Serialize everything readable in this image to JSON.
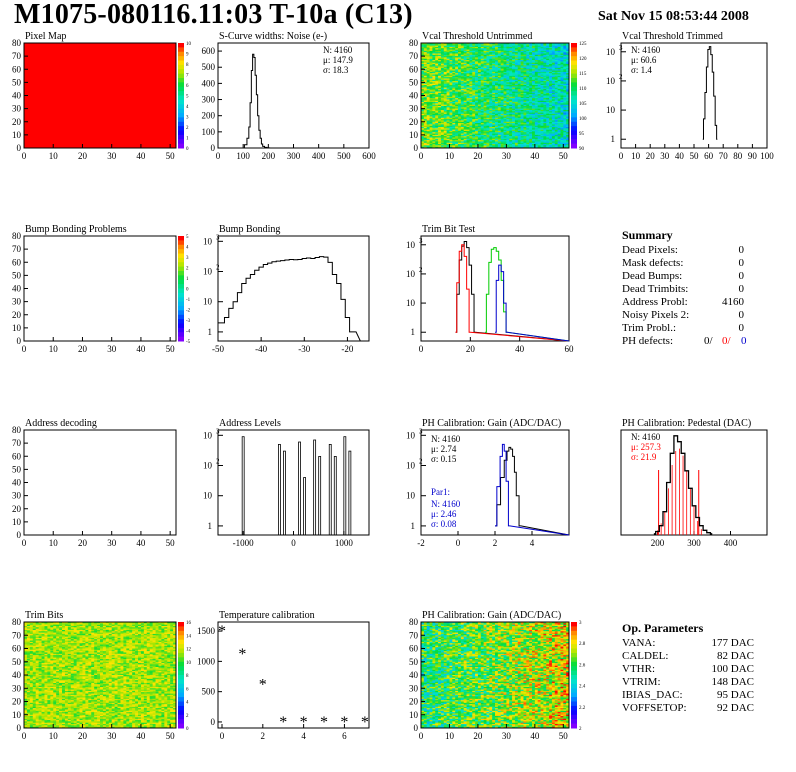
{
  "header": {
    "title": "M1075-080116.11:03 T-10a (C13)",
    "date": "Sat Nov 15 08:53:44 2008"
  },
  "colors": {
    "black_hist": "#000000",
    "red_hist": "#ff0000",
    "green_hist": "#00cc00",
    "blue_hist": "#0000cc",
    "pixel_map_fill": "#ff0000"
  },
  "palette_icon": "rainbow-color-scale",
  "panels": {
    "pixel_map": {
      "title": "Pixel Map",
      "zscale": [
        "10",
        "9",
        "8",
        "7",
        "6",
        "5",
        "4",
        "3",
        "2",
        "1",
        "0"
      ]
    },
    "scurve": {
      "title": "S-Curve widths: Noise (e",
      "title_sup": "-",
      "title_end": ")",
      "stats": [
        "N: 4160",
        "μ:  147.9",
        "σ:  18.3"
      ]
    },
    "vcal_untrimmed": {
      "title": "Vcal Threshold Untrimmed",
      "zscale": [
        "125",
        "120",
        "115",
        "110",
        "105",
        "100",
        "95",
        "90"
      ]
    },
    "vcal_trimmed": {
      "title": "Vcal Threshold Trimmed",
      "stats": [
        "N: 4160",
        "μ:  60.6",
        "σ:   1.4"
      ]
    },
    "bump_problems": {
      "title": "Bump Bonding Problems",
      "zscale": [
        "5",
        "4",
        "3",
        "2",
        "1",
        "0",
        "-1",
        "-2",
        "-3",
        "-4",
        "-5"
      ]
    },
    "bump_bonding": {
      "title": "Bump Bonding"
    },
    "trim_bit_test": {
      "title": "Trim Bit Test"
    },
    "address_decoding": {
      "title": "Address decoding"
    },
    "address_levels": {
      "title": "Address Levels"
    },
    "ph_gain": {
      "title": "PH Calibration: Gain (ADC/DAC)",
      "stats": [
        "N: 4160",
        "μ:  2.74",
        "σ:  0.15"
      ],
      "par1_title": "Par1:",
      "par1_stats": [
        "N: 4160",
        "μ:  2.46",
        "σ:  0.08"
      ]
    },
    "ph_pedestal": {
      "title": "PH Calibration: Pedestal (DAC)",
      "stats": [
        "N: 4160",
        "μ:  257.3",
        "σ:  21.9"
      ]
    },
    "trim_bits": {
      "title": "Trim Bits",
      "zscale": [
        "16",
        "14",
        "12",
        "10",
        "8",
        "6",
        "4",
        "2",
        "0"
      ]
    },
    "temp_cal": {
      "title": "Temperature calibration"
    },
    "ph_gain_map": {
      "title": "PH Calibration: Gain (ADC/DAC)",
      "zscale": [
        "3",
        "2.8",
        "2.6",
        "2.4",
        "2.2",
        "2"
      ]
    }
  },
  "summary": {
    "title": "Summary",
    "rows": [
      {
        "label": "Dead Pixels:",
        "value": "0"
      },
      {
        "label": "Mask defects:",
        "value": "0"
      },
      {
        "label": "Dead Bumps:",
        "value": "0"
      },
      {
        "label": "Dead Trimbits:",
        "value": "0"
      },
      {
        "label": "Address Probl:",
        "value": "4160"
      },
      {
        "label": "Noisy Pixels 2:",
        "value": "0"
      },
      {
        "label": "Trim Probl.:",
        "value": "0"
      }
    ],
    "ph_defects": {
      "label": "PH defects:",
      "v1": "0/",
      "v2": "0/",
      "v3": "0"
    }
  },
  "op_params": {
    "title": "Op. Parameters",
    "rows": [
      {
        "label": "VANA:",
        "value": "177 DAC"
      },
      {
        "label": "CALDEL:",
        "value": "82 DAC"
      },
      {
        "label": "VTHR:",
        "value": "100 DAC"
      },
      {
        "label": "VTRIM:",
        "value": "148 DAC"
      },
      {
        "label": "IBIAS_DAC:",
        "value": "95 DAC"
      },
      {
        "label": "VOFFSETOP:",
        "value": "92 DAC"
      }
    ]
  },
  "chart_data": [
    {
      "panel": "Pixel Map",
      "type": "heatmap",
      "x_range": [
        0,
        52
      ],
      "y_range": [
        0,
        80
      ],
      "xticks": [
        "0",
        "10",
        "20",
        "30",
        "40",
        "50"
      ],
      "yticks": [
        "0",
        "10",
        "20",
        "30",
        "40",
        "50",
        "60",
        "70",
        "80"
      ],
      "uniform_value": 10,
      "z_range": [
        0,
        10
      ]
    },
    {
      "panel": "S-Curve widths",
      "type": "line",
      "xlim": [
        0,
        600
      ],
      "ylim": [
        0,
        650
      ],
      "xticks": [
        "0",
        "100",
        "200",
        "300",
        "400",
        "500",
        "600"
      ],
      "yticks": [
        "0",
        "100",
        "200",
        "300",
        "400",
        "500",
        "600"
      ],
      "x": [
        100,
        110,
        120,
        125,
        130,
        135,
        140,
        145,
        150,
        155,
        160,
        165,
        170,
        175,
        180,
        190,
        200,
        210
      ],
      "values": [
        0,
        20,
        60,
        130,
        280,
        480,
        580,
        560,
        450,
        330,
        200,
        110,
        60,
        25,
        10,
        4,
        1,
        0
      ]
    },
    {
      "panel": "Vcal Threshold Untrimmed",
      "type": "heatmap",
      "x_range": [
        0,
        52
      ],
      "y_range": [
        0,
        80
      ],
      "xticks": [
        "0",
        "10",
        "20",
        "30",
        "40",
        "50"
      ],
      "yticks": [
        "0",
        "10",
        "20",
        "30",
        "40",
        "50",
        "60",
        "70",
        "80"
      ],
      "z_range": [
        90,
        127
      ]
    },
    {
      "panel": "Vcal Threshold Trimmed",
      "type": "line",
      "scale": "log",
      "xlim": [
        0,
        100
      ],
      "ylim": [
        0.5,
        2000
      ],
      "xticks": [
        "0",
        "10",
        "20",
        "30",
        "40",
        "50",
        "60",
        "70",
        "80",
        "90",
        "100"
      ],
      "x": [
        56,
        57,
        58,
        59,
        60,
        61,
        62,
        63,
        64,
        65,
        66
      ],
      "values": [
        1,
        5,
        40,
        300,
        1200,
        1500,
        800,
        200,
        30,
        3,
        1
      ]
    },
    {
      "panel": "Bump Bonding Problems",
      "type": "heatmap",
      "x_range": [
        0,
        52
      ],
      "y_range": [
        0,
        80
      ],
      "xticks": [
        "0",
        "10",
        "20",
        "30",
        "40",
        "50"
      ],
      "yticks": [
        "0",
        "10",
        "20",
        "30",
        "40",
        "50",
        "60",
        "70",
        "80"
      ],
      "z_range": [
        -5,
        5
      ],
      "empty": true
    },
    {
      "panel": "Bump Bonding",
      "type": "line",
      "scale": "log",
      "xlim": [
        -50,
        -15
      ],
      "ylim": [
        0.5,
        1500
      ],
      "xticks": [
        "-50",
        "-40",
        "-30",
        "-20"
      ],
      "x": [
        -50,
        -49,
        -48,
        -47,
        -46,
        -45,
        -44,
        -43,
        -42,
        -41,
        -40,
        -39,
        -38,
        -37,
        -36,
        -35,
        -34,
        -33,
        -32,
        -31,
        -30,
        -29,
        -28,
        -27,
        -26,
        -25,
        -24,
        -23,
        -22,
        -21,
        -20,
        -19,
        -18
      ],
      "values": [
        2,
        2,
        3,
        6,
        10,
        20,
        40,
        60,
        80,
        110,
        140,
        170,
        190,
        210,
        220,
        230,
        240,
        250,
        245,
        250,
        270,
        280,
        270,
        290,
        310,
        300,
        200,
        80,
        40,
        12,
        3,
        1,
        1
      ]
    },
    {
      "panel": "Trim Bit Test",
      "type": "line",
      "scale": "log",
      "xlim": [
        0,
        60
      ],
      "ylim": [
        0.5,
        2000
      ],
      "xticks": [
        "0",
        "20",
        "40",
        "60"
      ],
      "series": [
        {
          "color": "black",
          "x": [
            14,
            15,
            16,
            17,
            18,
            19,
            20,
            21,
            22
          ],
          "values": [
            1,
            20,
            300,
            900,
            1300,
            800,
            200,
            20,
            1
          ]
        },
        {
          "color": "red",
          "x": [
            14,
            15,
            16,
            17,
            18,
            19,
            20
          ],
          "values": [
            1,
            50,
            600,
            1000,
            400,
            30,
            1
          ]
        },
        {
          "color": "green",
          "x": [
            26,
            27,
            28,
            29,
            30,
            31,
            32,
            33,
            34,
            35
          ],
          "values": [
            1,
            20,
            250,
            700,
            800,
            600,
            300,
            60,
            5,
            1
          ]
        },
        {
          "color": "blue",
          "x": [
            30,
            31,
            32,
            33,
            34,
            35
          ],
          "values": [
            1,
            60,
            200,
            120,
            10,
            1
          ]
        }
      ]
    },
    {
      "panel": "Address decoding",
      "type": "heatmap",
      "x_range": [
        0,
        52
      ],
      "y_range": [
        0,
        80
      ],
      "xticks": [
        "0",
        "10",
        "20",
        "30",
        "40",
        "50"
      ],
      "yticks": [
        "0",
        "10",
        "20",
        "30",
        "40",
        "50",
        "60",
        "70",
        "80"
      ],
      "empty": true
    },
    {
      "panel": "Address Levels",
      "type": "bar",
      "scale": "log",
      "xlim": [
        -1500,
        1500
      ],
      "ylim": [
        0.5,
        1500
      ],
      "xticks": [
        "-1000",
        "0",
        "1000"
      ],
      "x": [
        -1000,
        -280,
        -180,
        120,
        220,
        420,
        520,
        730,
        830,
        1020,
        1120
      ],
      "values": [
        900,
        500,
        300,
        600,
        40,
        700,
        200,
        500,
        200,
        900,
        300
      ]
    },
    {
      "panel": "PH Calibration: Gain",
      "type": "line",
      "scale": "log",
      "xlim": [
        -2,
        6
      ],
      "ylim": [
        0.5,
        1500
      ],
      "xticks": [
        "-2",
        "0",
        "2",
        "4"
      ],
      "series": [
        {
          "color": "black",
          "x": [
            2.0,
            2.2,
            2.4,
            2.6,
            2.7,
            2.8,
            2.9,
            3.0,
            3.1,
            3.2,
            3.4
          ],
          "values": [
            1,
            5,
            40,
            150,
            300,
            400,
            350,
            200,
            60,
            10,
            1
          ]
        },
        {
          "color": "blue",
          "x": [
            2.0,
            2.2,
            2.35,
            2.45,
            2.55,
            2.65,
            2.8
          ],
          "values": [
            1,
            20,
            200,
            500,
            300,
            30,
            1
          ]
        }
      ]
    },
    {
      "panel": "PH Calibration: Pedestal",
      "type": "line",
      "xlim": [
        100,
        500
      ],
      "ylim": [
        0,
        90
      ],
      "xticks": [
        "200",
        "300",
        "400"
      ],
      "x": [
        190,
        200,
        210,
        220,
        230,
        240,
        250,
        260,
        270,
        280,
        290,
        300,
        310,
        320,
        330,
        340,
        350
      ],
      "values": [
        1,
        3,
        8,
        20,
        45,
        70,
        85,
        80,
        70,
        55,
        40,
        25,
        15,
        8,
        4,
        2,
        1
      ],
      "red_fit": {
        "x": [
          200,
          210,
          220,
          230,
          240,
          250,
          260,
          270,
          280,
          290,
          300,
          310,
          320
        ],
        "values": [
          4,
          10,
          20,
          40,
          60,
          72,
          74,
          68,
          55,
          40,
          25,
          12,
          5
        ]
      }
    },
    {
      "panel": "Trim Bits",
      "type": "heatmap",
      "x_range": [
        0,
        52
      ],
      "y_range": [
        0,
        80
      ],
      "xticks": [
        "0",
        "10",
        "20",
        "30",
        "40",
        "50"
      ],
      "yticks": [
        "0",
        "10",
        "20",
        "30",
        "40",
        "50",
        "60",
        "70",
        "80"
      ],
      "z_range": [
        0,
        16
      ]
    },
    {
      "panel": "Temperature calibration",
      "type": "scatter",
      "xlim": [
        0,
        7.5
      ],
      "ylim": [
        -100,
        1650
      ],
      "xticks": [
        "0",
        "2",
        "4",
        "6"
      ],
      "yticks": [
        "0",
        "500",
        "1000",
        "1500"
      ],
      "x": [
        0,
        1,
        2,
        3,
        4,
        5,
        6,
        7
      ],
      "values": [
        1500,
        1120,
        620,
        0,
        0,
        0,
        0,
        0
      ]
    },
    {
      "panel": "PH Calibration: Gain map",
      "type": "heatmap",
      "x_range": [
        0,
        52
      ],
      "y_range": [
        0,
        80
      ],
      "xticks": [
        "0",
        "10",
        "20",
        "30",
        "40",
        "50"
      ],
      "yticks": [
        "0",
        "10",
        "20",
        "30",
        "40",
        "50",
        "60",
        "70",
        "80"
      ],
      "z_range": [
        2,
        3
      ]
    }
  ]
}
